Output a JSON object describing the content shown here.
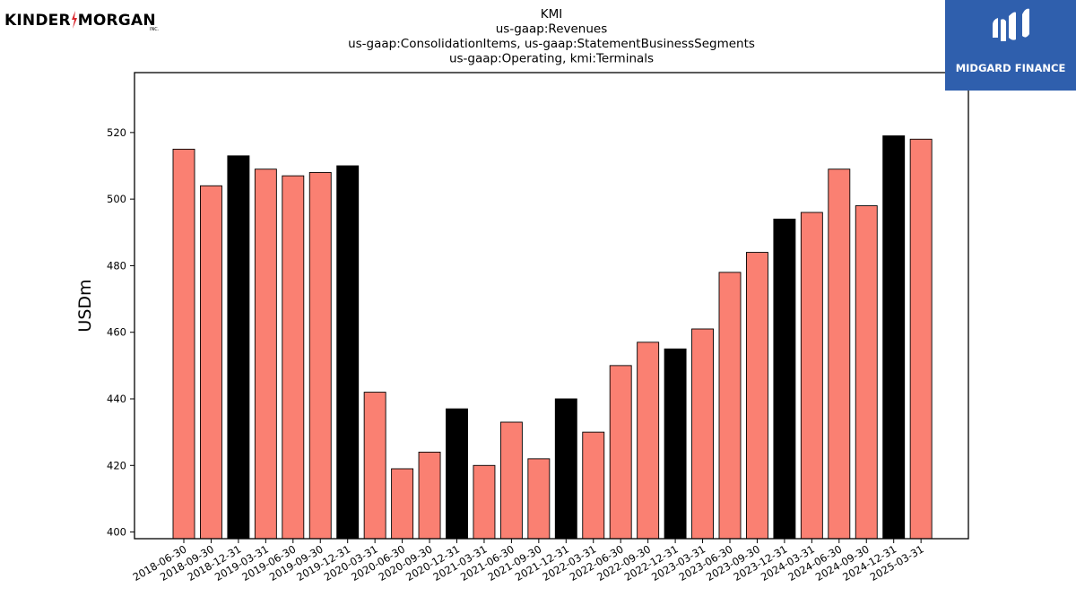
{
  "logos": {
    "left": {
      "part1": "KINDER",
      "part2": "MORGAN",
      "suffix": "INC."
    },
    "right": {
      "brand": "MIDGARD FINANCE"
    }
  },
  "colors": {
    "regular": "#fa8072",
    "year_end": "#000000",
    "edge": "#000000"
  },
  "chart_data": {
    "type": "bar",
    "title_lines": [
      "KMI",
      "us-gaap:Revenues",
      "us-gaap:ConsolidationItems, us-gaap:StatementBusinessSegments",
      "us-gaap:Operating, kmi:Terminals"
    ],
    "xlabel": "",
    "ylabel": "USDm",
    "ylim": [
      398,
      538
    ],
    "yticks": [
      400,
      420,
      440,
      460,
      480,
      500,
      520
    ],
    "grid": false,
    "legend": "none",
    "categories": [
      "2018-06-30",
      "2018-09-30",
      "2018-12-31",
      "2019-03-31",
      "2019-06-30",
      "2019-09-30",
      "2019-12-31",
      "2020-03-31",
      "2020-06-30",
      "2020-09-30",
      "2020-12-31",
      "2021-03-31",
      "2021-06-30",
      "2021-09-30",
      "2021-12-31",
      "2022-03-31",
      "2022-06-30",
      "2022-09-30",
      "2022-12-31",
      "2023-03-31",
      "2023-06-30",
      "2023-09-30",
      "2023-12-31",
      "2024-03-31",
      "2024-06-30",
      "2024-09-30",
      "2024-12-31",
      "2025-03-31"
    ],
    "values": [
      515,
      504,
      513,
      509,
      507,
      508,
      510,
      442,
      419,
      424,
      437,
      420,
      433,
      422,
      440,
      430,
      450,
      457,
      455,
      461,
      478,
      484,
      494,
      496,
      509,
      498,
      519,
      518
    ]
  }
}
